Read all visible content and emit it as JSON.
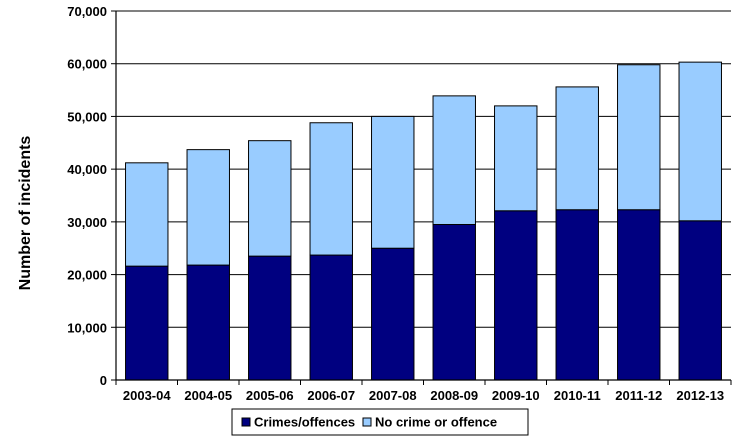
{
  "chart_data": {
    "type": "bar",
    "stacked": true,
    "title": "",
    "xlabel": "",
    "ylabel": "Number of incidents",
    "ylim": [
      0,
      70000
    ],
    "yticks": [
      0,
      10000,
      20000,
      30000,
      40000,
      50000,
      60000,
      70000
    ],
    "ytick_labels": [
      "0",
      "10,000",
      "20,000",
      "30,000",
      "40,000",
      "50,000",
      "60,000",
      "70,000"
    ],
    "grid": true,
    "legend_position": "bottom",
    "categories": [
      "2003-04",
      "2004-05",
      "2005-06",
      "2006-07",
      "2007-08",
      "2008-09",
      "2009-10",
      "2010-11",
      "2011-12",
      "2012-13"
    ],
    "series": [
      {
        "name": "Crimes/offences",
        "color": "#000080",
        "values": [
          21600,
          21800,
          23500,
          23700,
          25000,
          29500,
          32100,
          32300,
          32300,
          30200
        ]
      },
      {
        "name": "No crime or offence",
        "color": "#99CCFF",
        "values": [
          19600,
          21900,
          21900,
          25100,
          25000,
          24400,
          19900,
          23300,
          27500,
          30100
        ]
      }
    ]
  }
}
